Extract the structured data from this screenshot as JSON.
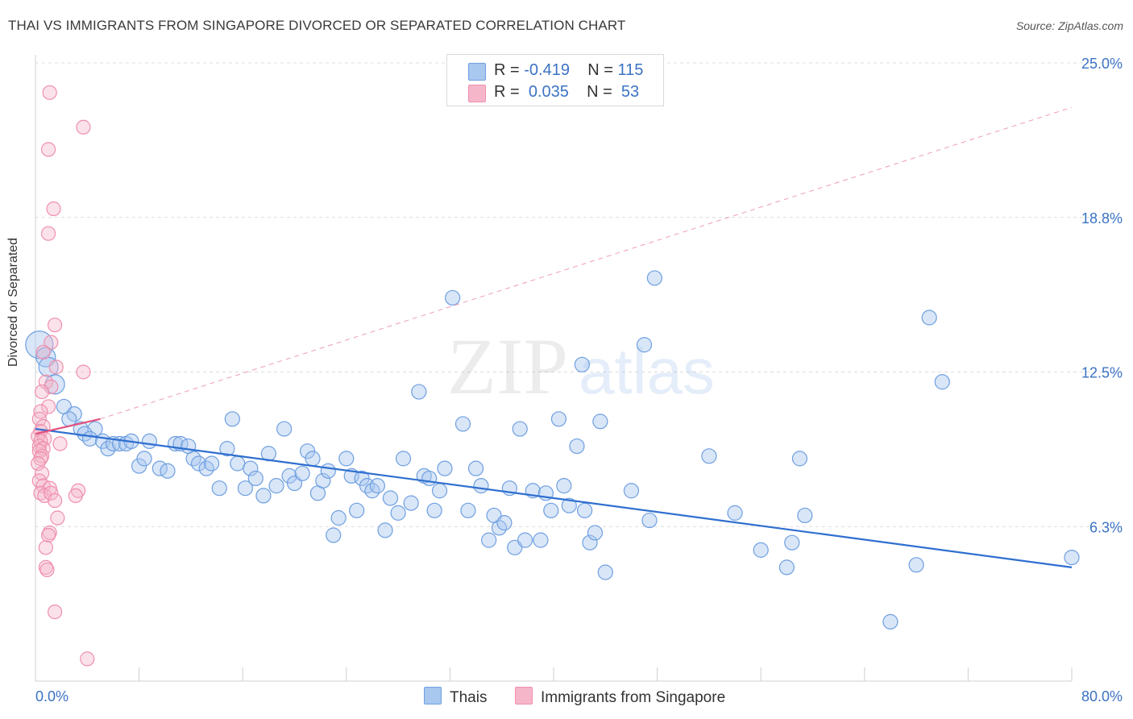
{
  "header": {
    "title": "THAI VS IMMIGRANTS FROM SINGAPORE DIVORCED OR SEPARATED CORRELATION CHART",
    "source": "Source: ZipAtlas.com"
  },
  "watermark": {
    "zip": "ZIP",
    "atlas": "atlas"
  },
  "legend_top": {
    "rows": [
      {
        "r_label": "R =",
        "r_value": "-0.419",
        "n_label": "N =",
        "n_value": "115",
        "color": "#a9c8ef"
      },
      {
        "r_label": "R =",
        "r_value": "0.035",
        "n_label": "N =",
        "n_value": "53",
        "color": "#f6b6ca"
      }
    ]
  },
  "legend_bottom": {
    "items": [
      {
        "label": "Thais",
        "color": "#a9c8ef"
      },
      {
        "label": "Immigrants from Singapore",
        "color": "#f6b6ca"
      }
    ]
  },
  "chart_data": {
    "type": "scatter",
    "title": "THAI VS IMMIGRANTS FROM SINGAPORE DIVORCED OR SEPARATED CORRELATION CHART",
    "xlabel": "",
    "ylabel": "Divorced or Separated",
    "xlim": [
      0,
      80
    ],
    "ylim": [
      0,
      25
    ],
    "x_tick_labels": [
      "0.0%",
      "80.0%"
    ],
    "y_ticks": [
      6.25,
      12.5,
      18.75,
      25.0
    ],
    "y_tick_labels": [
      "6.3%",
      "12.5%",
      "18.8%",
      "25.0%"
    ],
    "grid": true,
    "legend": "bottom-center",
    "colors": {
      "thais": "#6f9fe0",
      "singapore": "#ef8fae",
      "thais_line": "#2f6fcf",
      "singapore_line": "#e0507f"
    },
    "series": [
      {
        "name": "Thais",
        "r": -0.419,
        "n": 115,
        "trend": {
          "x": [
            0,
            80
          ],
          "y": [
            10.2,
            4.6
          ]
        },
        "points": [
          [
            0.3,
            13.6
          ],
          [
            0.8,
            13.1
          ],
          [
            1.0,
            12.7
          ],
          [
            1.5,
            12.0
          ],
          [
            2.2,
            11.1
          ],
          [
            3.0,
            10.8
          ],
          [
            2.6,
            10.6
          ],
          [
            3.5,
            10.2
          ],
          [
            4.6,
            10.2
          ],
          [
            3.8,
            10.0
          ],
          [
            4.2,
            9.8
          ],
          [
            5.2,
            9.7
          ],
          [
            5.6,
            9.4
          ],
          [
            6.0,
            9.6
          ],
          [
            6.5,
            9.6
          ],
          [
            7.0,
            9.6
          ],
          [
            7.4,
            9.7
          ],
          [
            8.0,
            8.7
          ],
          [
            8.4,
            9.0
          ],
          [
            8.8,
            9.7
          ],
          [
            9.6,
            8.6
          ],
          [
            10.2,
            8.5
          ],
          [
            10.8,
            9.6
          ],
          [
            11.2,
            9.6
          ],
          [
            11.8,
            9.5
          ],
          [
            12.2,
            9.0
          ],
          [
            12.6,
            8.8
          ],
          [
            13.2,
            8.6
          ],
          [
            13.6,
            8.8
          ],
          [
            14.2,
            7.8
          ],
          [
            14.8,
            9.4
          ],
          [
            15.2,
            10.6
          ],
          [
            15.6,
            8.8
          ],
          [
            16.2,
            7.8
          ],
          [
            16.6,
            8.6
          ],
          [
            17.0,
            8.2
          ],
          [
            17.6,
            7.5
          ],
          [
            18.0,
            9.2
          ],
          [
            18.6,
            7.9
          ],
          [
            19.2,
            10.2
          ],
          [
            19.6,
            8.3
          ],
          [
            20.0,
            8.0
          ],
          [
            20.6,
            8.4
          ],
          [
            21.0,
            9.3
          ],
          [
            21.4,
            9.0
          ],
          [
            21.8,
            7.6
          ],
          [
            22.2,
            8.1
          ],
          [
            22.6,
            8.5
          ],
          [
            23.0,
            5.9
          ],
          [
            23.4,
            6.6
          ],
          [
            24.0,
            9.0
          ],
          [
            24.4,
            8.3
          ],
          [
            24.8,
            6.9
          ],
          [
            25.2,
            8.2
          ],
          [
            25.6,
            7.9
          ],
          [
            26.0,
            7.7
          ],
          [
            26.4,
            7.9
          ],
          [
            27.0,
            6.1
          ],
          [
            27.4,
            7.4
          ],
          [
            28.0,
            6.8
          ],
          [
            28.4,
            9.0
          ],
          [
            29.0,
            7.2
          ],
          [
            29.6,
            11.7
          ],
          [
            30.0,
            8.3
          ],
          [
            30.4,
            8.2
          ],
          [
            30.8,
            6.9
          ],
          [
            31.2,
            7.7
          ],
          [
            31.6,
            8.6
          ],
          [
            32.2,
            15.5
          ],
          [
            33.0,
            10.4
          ],
          [
            33.4,
            6.9
          ],
          [
            34.0,
            8.6
          ],
          [
            34.4,
            7.9
          ],
          [
            35.0,
            5.7
          ],
          [
            35.4,
            6.7
          ],
          [
            35.8,
            6.2
          ],
          [
            36.2,
            6.4
          ],
          [
            36.6,
            7.8
          ],
          [
            37.0,
            5.4
          ],
          [
            37.4,
            10.2
          ],
          [
            37.8,
            5.7
          ],
          [
            38.4,
            7.7
          ],
          [
            39.0,
            5.7
          ],
          [
            39.4,
            7.6
          ],
          [
            39.8,
            6.9
          ],
          [
            40.4,
            10.6
          ],
          [
            40.8,
            7.9
          ],
          [
            41.2,
            7.1
          ],
          [
            41.8,
            9.5
          ],
          [
            42.2,
            12.8
          ],
          [
            42.4,
            6.9
          ],
          [
            42.8,
            5.6
          ],
          [
            43.2,
            6.0
          ],
          [
            43.6,
            10.5
          ],
          [
            44.0,
            4.4
          ],
          [
            46.0,
            7.7
          ],
          [
            47.0,
            13.6
          ],
          [
            47.4,
            6.5
          ],
          [
            47.8,
            16.3
          ],
          [
            52.0,
            9.1
          ],
          [
            54.0,
            6.8
          ],
          [
            56.0,
            5.3
          ],
          [
            58.0,
            4.6
          ],
          [
            59.0,
            9.0
          ],
          [
            59.4,
            6.7
          ],
          [
            58.4,
            5.6
          ],
          [
            66.0,
            2.4
          ],
          [
            68.0,
            4.7
          ],
          [
            69.0,
            14.7
          ],
          [
            70.0,
            12.1
          ],
          [
            80.0,
            5.0
          ]
        ]
      },
      {
        "name": "Immigrants from Singapore",
        "r": 0.035,
        "n": 53,
        "trend": {
          "x": [
            0,
            5
          ],
          "y": [
            10.0,
            10.6
          ],
          "dashed_extension": {
            "x": [
              5,
              80
            ],
            "y": [
              10.6,
              23.2
            ]
          }
        },
        "points": [
          [
            1.1,
            23.8
          ],
          [
            3.7,
            22.4
          ],
          [
            1.0,
            21.5
          ],
          [
            1.4,
            19.1
          ],
          [
            1.0,
            18.1
          ],
          [
            1.5,
            14.4
          ],
          [
            1.2,
            13.7
          ],
          [
            0.6,
            13.3
          ],
          [
            1.6,
            12.7
          ],
          [
            3.7,
            12.5
          ],
          [
            0.8,
            12.1
          ],
          [
            1.2,
            11.9
          ],
          [
            0.5,
            11.7
          ],
          [
            1.0,
            11.1
          ],
          [
            0.4,
            10.9
          ],
          [
            0.3,
            10.6
          ],
          [
            0.6,
            10.3
          ],
          [
            0.4,
            10.1
          ],
          [
            0.2,
            9.9
          ],
          [
            0.7,
            9.8
          ],
          [
            0.4,
            9.7
          ],
          [
            1.9,
            9.6
          ],
          [
            0.3,
            9.5
          ],
          [
            0.6,
            9.4
          ],
          [
            0.3,
            9.3
          ],
          [
            0.5,
            9.1
          ],
          [
            0.4,
            9.0
          ],
          [
            0.2,
            8.8
          ],
          [
            0.5,
            8.4
          ],
          [
            0.3,
            8.1
          ],
          [
            0.6,
            7.9
          ],
          [
            1.1,
            7.8
          ],
          [
            0.4,
            7.6
          ],
          [
            0.7,
            7.5
          ],
          [
            1.2,
            7.6
          ],
          [
            3.3,
            7.7
          ],
          [
            3.1,
            7.5
          ],
          [
            1.5,
            7.3
          ],
          [
            1.7,
            6.6
          ],
          [
            1.1,
            6.0
          ],
          [
            1.0,
            5.9
          ],
          [
            0.8,
            5.4
          ],
          [
            0.8,
            4.6
          ],
          [
            0.9,
            4.5
          ],
          [
            1.5,
            2.8
          ],
          [
            4.0,
            0.9
          ]
        ]
      }
    ]
  }
}
